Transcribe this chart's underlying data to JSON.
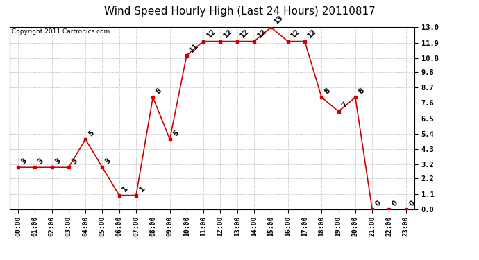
{
  "title": "Wind Speed Hourly High (Last 24 Hours) 20110817",
  "copyright": "Copyright 2011 Cartronics.com",
  "hours": [
    "00:00",
    "01:00",
    "02:00",
    "03:00",
    "04:00",
    "05:00",
    "06:00",
    "07:00",
    "08:00",
    "09:00",
    "10:00",
    "11:00",
    "12:00",
    "13:00",
    "14:00",
    "15:00",
    "16:00",
    "17:00",
    "18:00",
    "19:00",
    "20:00",
    "21:00",
    "22:00",
    "23:00"
  ],
  "values": [
    3,
    3,
    3,
    3,
    5,
    3,
    1,
    1,
    8,
    5,
    11,
    12,
    12,
    12,
    12,
    13,
    12,
    12,
    8,
    7,
    8,
    0,
    0,
    0
  ],
  "line_color": "#cc0000",
  "marker_color": "#cc0000",
  "bg_color": "#ffffff",
  "grid_color": "#bbbbbb",
  "yticks": [
    0.0,
    1.1,
    2.2,
    3.2,
    4.3,
    5.4,
    6.5,
    7.6,
    8.7,
    9.8,
    10.8,
    11.9,
    13.0
  ],
  "ymin": 0.0,
  "ymax": 13.0,
  "title_fontsize": 11,
  "annotation_fontsize": 7,
  "copyright_fontsize": 6.5,
  "tick_fontsize": 7,
  "ytick_fontsize": 7.5
}
